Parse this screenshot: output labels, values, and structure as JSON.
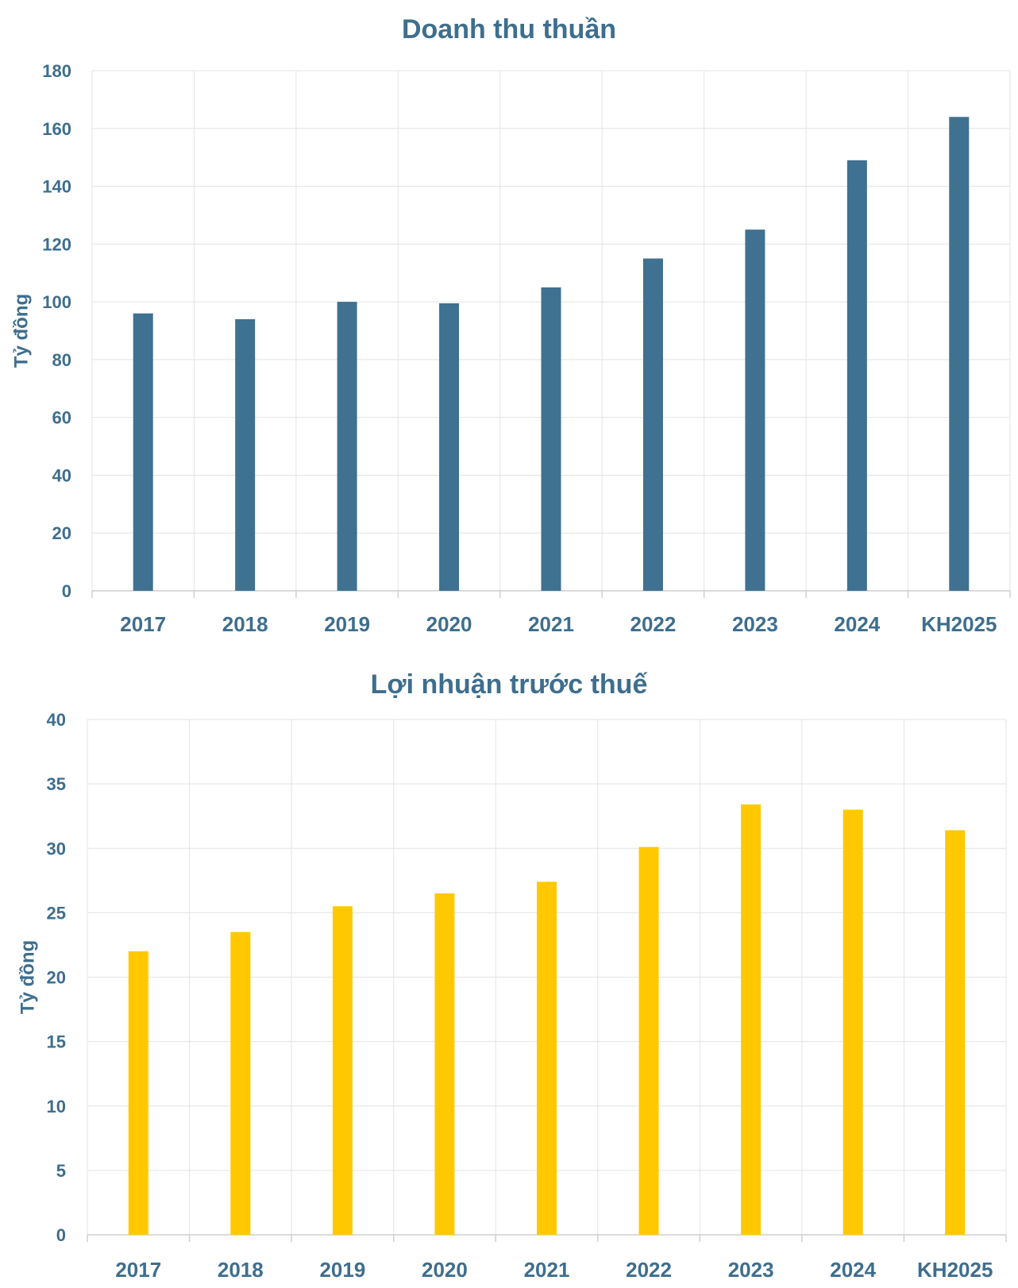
{
  "chart_data": [
    {
      "type": "bar",
      "title": "Doanh thu thuần",
      "ylabel": "Tỷ đồng",
      "xlabel": "",
      "categories": [
        "2017",
        "2018",
        "2019",
        "2020",
        "2021",
        "2022",
        "2023",
        "2024",
        "KH2025"
      ],
      "values": [
        96,
        94,
        100,
        99.5,
        105,
        115,
        125,
        149,
        164
      ],
      "ylim": [
        0,
        180
      ],
      "yticks": [
        0,
        20,
        40,
        60,
        80,
        100,
        120,
        140,
        160,
        180
      ],
      "grid": true,
      "legend": "none",
      "color": "#3f7191"
    },
    {
      "type": "bar",
      "title": "Lợi nhuận trước thuế",
      "ylabel": "Tỷ đồng",
      "xlabel": "",
      "categories": [
        "2017",
        "2018",
        "2019",
        "2020",
        "2021",
        "2022",
        "2023",
        "2024",
        "KH2025"
      ],
      "values": [
        22,
        23.5,
        25.5,
        26.5,
        27.4,
        30.1,
        33.4,
        33,
        31.4
      ],
      "ylim": [
        0,
        40
      ],
      "yticks": [
        0,
        5,
        10,
        15,
        20,
        25,
        30,
        35,
        40
      ],
      "grid": true,
      "legend": "none",
      "color": "#ffc800"
    }
  ]
}
